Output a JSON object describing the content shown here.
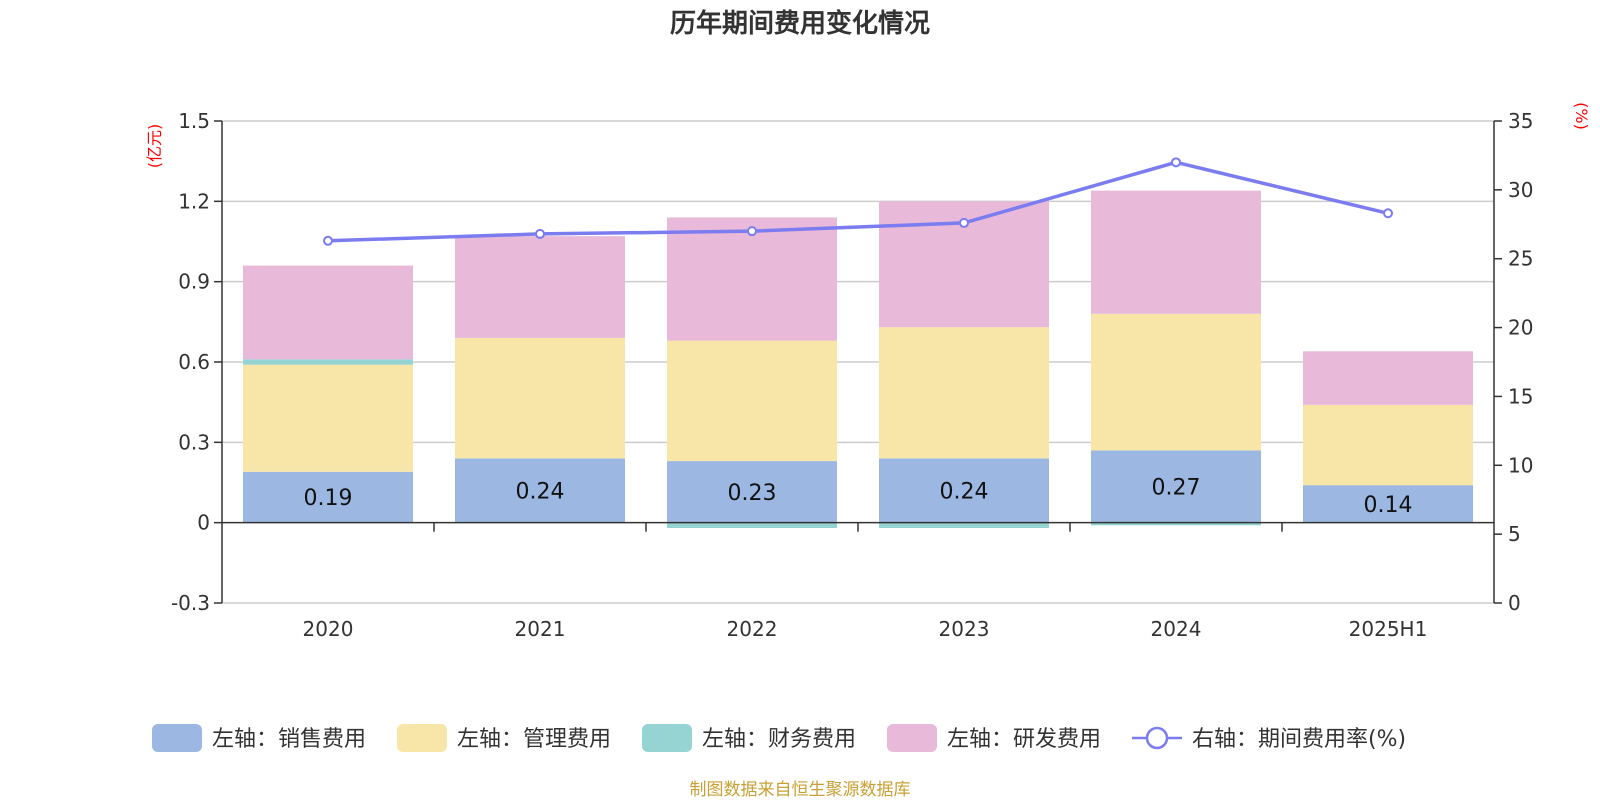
{
  "chart_data": {
    "type": "bar",
    "title": "历年期间费用变化情况",
    "categories": [
      "2020",
      "2021",
      "2022",
      "2023",
      "2024",
      "2025H1"
    ],
    "left_axis": {
      "unit": "(亿元)",
      "ylim": [
        -0.3,
        1.5
      ],
      "ticks": [
        "1.5",
        "1.2",
        "0.9",
        "0.6",
        "0.3",
        "0",
        "-0.3"
      ]
    },
    "right_axis": {
      "unit": "(%)",
      "ylim": [
        0,
        35
      ],
      "ticks": [
        "35",
        "30",
        "25",
        "20",
        "15",
        "10",
        "5",
        "0"
      ]
    },
    "stacked": true,
    "series": [
      {
        "name": "左轴：销售费用",
        "axis": "left",
        "type": "bar",
        "color": "#9bb7e2",
        "values": [
          0.19,
          0.24,
          0.23,
          0.24,
          0.27,
          0.14
        ],
        "data_labels": [
          "0.19",
          "0.24",
          "0.23",
          "0.24",
          "0.27",
          "0.14"
        ]
      },
      {
        "name": "左轴：管理费用",
        "axis": "left",
        "type": "bar",
        "color": "#f8e6a8",
        "values": [
          0.4,
          0.45,
          0.45,
          0.49,
          0.51,
          0.3
        ]
      },
      {
        "name": "左轴：财务费用",
        "axis": "left",
        "type": "bar",
        "color": "#96d3d3",
        "values": [
          0.02,
          0.0,
          -0.02,
          -0.02,
          -0.01,
          0.0
        ]
      },
      {
        "name": "左轴：研发费用",
        "axis": "left",
        "type": "bar",
        "color": "#e8b9d9",
        "values": [
          0.35,
          0.38,
          0.46,
          0.47,
          0.46,
          0.2
        ]
      },
      {
        "name": "右轴：期间费用率(%)",
        "axis": "right",
        "type": "line",
        "color": "#7b7cf0",
        "values": [
          26.3,
          26.8,
          27.0,
          27.6,
          32.0,
          28.3
        ]
      }
    ],
    "grid": true,
    "legend_position": "bottom"
  },
  "source_note": "制图数据来自恒生聚源数据库",
  "colors": {
    "axis_unit": "#ff0000",
    "source": "#c8a035",
    "grid": "#cccccc"
  }
}
